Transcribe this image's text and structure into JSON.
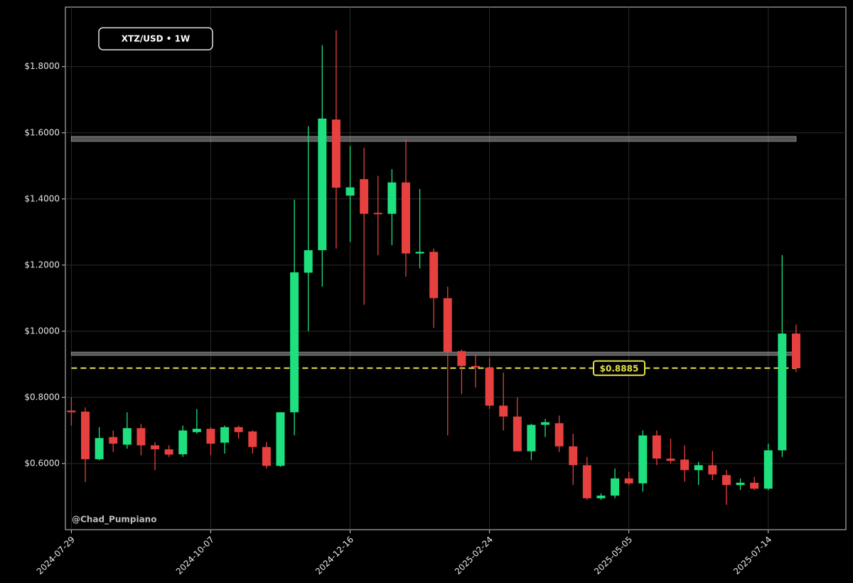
{
  "chart_data": {
    "type": "candlestick",
    "title": "XTZ/USD • 1W",
    "watermark": "@Chad_Pumpiano",
    "x": [
      "2024-07-29",
      "2024-08-05",
      "2024-08-12",
      "2024-08-19",
      "2024-08-26",
      "2024-09-02",
      "2024-09-09",
      "2024-09-16",
      "2024-09-23",
      "2024-09-30",
      "2024-10-07",
      "2024-10-14",
      "2024-10-21",
      "2024-10-28",
      "2024-11-04",
      "2024-11-11",
      "2024-11-18",
      "2024-11-25",
      "2024-12-02",
      "2024-12-09",
      "2024-12-16",
      "2024-12-23",
      "2024-12-30",
      "2025-01-06",
      "2025-01-13",
      "2025-01-20",
      "2025-01-27",
      "2025-02-03",
      "2025-02-10",
      "2025-02-17",
      "2025-02-24",
      "2025-03-03",
      "2025-03-10",
      "2025-03-17",
      "2025-03-24",
      "2025-03-31",
      "2025-04-07",
      "2025-04-14",
      "2025-04-21",
      "2025-04-28",
      "2025-05-05",
      "2025-05-12",
      "2025-05-19",
      "2025-05-26",
      "2025-06-02",
      "2025-06-09",
      "2025-06-16",
      "2025-06-23",
      "2025-06-30",
      "2025-07-07",
      "2025-07-14",
      "2025-07-21",
      "2025-07-28"
    ],
    "open": [
      0.76,
      0.757,
      0.613,
      0.68,
      0.657,
      0.707,
      0.655,
      0.643,
      0.628,
      0.695,
      0.705,
      0.663,
      0.71,
      0.697,
      0.65,
      0.593,
      0.755,
      1.177,
      1.245,
      1.64,
      1.41,
      1.46,
      1.358,
      1.355,
      1.45,
      1.235,
      1.24,
      1.1,
      0.94,
      0.895,
      0.89,
      0.775,
      0.742,
      0.637,
      0.717,
      0.722,
      0.652,
      0.595,
      0.495,
      0.503,
      0.555,
      0.54,
      0.685,
      0.615,
      0.612,
      0.58,
      0.595,
      0.565,
      0.535,
      0.542,
      0.524,
      0.64,
      0.993
    ],
    "high": [
      0.8,
      0.77,
      0.71,
      0.7,
      0.755,
      0.72,
      0.665,
      0.655,
      0.715,
      0.765,
      0.71,
      0.715,
      0.715,
      0.7,
      0.665,
      0.755,
      1.398,
      1.62,
      1.865,
      1.91,
      1.56,
      1.555,
      1.47,
      1.49,
      1.58,
      1.43,
      1.25,
      1.135,
      0.945,
      0.93,
      0.92,
      0.875,
      0.8,
      0.72,
      0.735,
      0.745,
      0.69,
      0.62,
      0.51,
      0.585,
      0.575,
      0.7,
      0.7,
      0.675,
      0.655,
      0.605,
      0.638,
      0.58,
      0.555,
      0.56,
      0.66,
      1.23,
      1.02
    ],
    "low": [
      0.715,
      0.544,
      0.61,
      0.635,
      0.645,
      0.625,
      0.58,
      0.62,
      0.62,
      0.69,
      0.625,
      0.63,
      0.675,
      0.63,
      0.585,
      0.59,
      0.685,
      1.0,
      1.135,
      1.25,
      1.27,
      1.08,
      1.23,
      1.26,
      1.165,
      1.19,
      1.01,
      0.685,
      0.81,
      0.83,
      0.765,
      0.7,
      0.637,
      0.61,
      0.68,
      0.635,
      0.535,
      0.49,
      0.49,
      0.495,
      0.535,
      0.515,
      0.595,
      0.6,
      0.545,
      0.535,
      0.55,
      0.475,
      0.52,
      0.52,
      0.52,
      0.62,
      0.877
    ],
    "close": [
      0.755,
      0.613,
      0.677,
      0.66,
      0.707,
      0.655,
      0.643,
      0.627,
      0.7,
      0.705,
      0.66,
      0.71,
      0.695,
      0.65,
      0.593,
      0.755,
      1.178,
      1.245,
      1.643,
      1.434,
      1.435,
      1.355,
      1.355,
      1.45,
      1.235,
      1.24,
      1.1,
      0.937,
      0.895,
      0.892,
      0.775,
      0.742,
      0.637,
      0.717,
      0.725,
      0.652,
      0.595,
      0.495,
      0.503,
      0.555,
      0.54,
      0.685,
      0.615,
      0.608,
      0.58,
      0.595,
      0.567,
      0.535,
      0.542,
      0.524,
      0.64,
      0.993,
      0.888
    ],
    "up_color": "#1fe07f",
    "down_color": "#e6403f",
    "xlim": [
      "2024-07-26",
      "2025-08-22"
    ],
    "xticks": [
      "2024-07-29",
      "2024-10-07",
      "2024-12-16",
      "2025-02-24",
      "2025-05-05",
      "2025-07-14"
    ],
    "ylim": [
      0.4,
      1.98
    ],
    "yticks": [
      {
        "value": 0.6,
        "label": "$0.6000"
      },
      {
        "value": 0.8,
        "label": "$0.8000"
      },
      {
        "value": 1.0,
        "label": "$1.0000"
      },
      {
        "value": 1.2,
        "label": "$1.2000"
      },
      {
        "value": 1.4,
        "label": "$1.4000"
      },
      {
        "value": 1.6,
        "label": "$1.6000"
      },
      {
        "value": 1.8,
        "label": "$1.8000"
      }
    ],
    "grid": true,
    "zones": [
      {
        "from": 1.574,
        "to": 1.589
      },
      {
        "from": 0.927,
        "to": 0.937
      }
    ],
    "price_line": {
      "value": 0.8885,
      "label": "$0.8885",
      "color": "#e5e04a"
    }
  }
}
